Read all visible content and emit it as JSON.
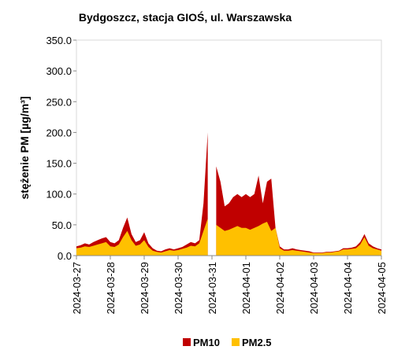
{
  "chart_data": {
    "type": "area",
    "title": "Bydgoszcz, stacja GIOŚ, ul. Warszawska",
    "y_label": "stężenie PM [µg/m³]",
    "categories": [
      "2024-03-27",
      null,
      null,
      null,
      null,
      null,
      null,
      null,
      "2024-03-28",
      null,
      null,
      null,
      null,
      null,
      null,
      null,
      "2024-03-29",
      null,
      null,
      null,
      null,
      null,
      null,
      null,
      "2024-03-30",
      null,
      null,
      null,
      null,
      null,
      null,
      null,
      "2024-03-31",
      null,
      null,
      null,
      null,
      null,
      null,
      null,
      "2024-04-01",
      null,
      null,
      null,
      null,
      null,
      null,
      null,
      "2024-04-02",
      null,
      null,
      null,
      null,
      null,
      null,
      null,
      "2024-04-03",
      null,
      null,
      null,
      null,
      null,
      null,
      null,
      "2024-04-04",
      null,
      null,
      null,
      null,
      null,
      null,
      null,
      "2024-04-05"
    ],
    "series": [
      {
        "name": "PM10",
        "color": "#c00000",
        "values": [
          15,
          17,
          20,
          18,
          22,
          25,
          28,
          30,
          22,
          20,
          25,
          45,
          62,
          35,
          22,
          25,
          38,
          20,
          12,
          8,
          7,
          10,
          12,
          10,
          12,
          14,
          18,
          22,
          20,
          25,
          85,
          200,
          null,
          145,
          120,
          80,
          85,
          95,
          100,
          95,
          100,
          95,
          100,
          130,
          85,
          120,
          125,
          45,
          15,
          10,
          10,
          12,
          10,
          9,
          8,
          7,
          5,
          5,
          5,
          6,
          6,
          7,
          8,
          12,
          12,
          13,
          15,
          22,
          35,
          20,
          15,
          12,
          10
        ]
      },
      {
        "name": "PM2.5",
        "color": "#ffc000",
        "values": [
          12,
          13,
          15,
          14,
          16,
          18,
          20,
          22,
          15,
          14,
          18,
          30,
          40,
          25,
          16,
          18,
          25,
          14,
          8,
          6,
          5,
          7,
          9,
          8,
          9,
          11,
          13,
          16,
          15,
          20,
          40,
          60,
          null,
          50,
          45,
          40,
          42,
          45,
          48,
          45,
          45,
          42,
          45,
          48,
          52,
          55,
          40,
          45,
          12,
          8,
          8,
          9,
          8,
          7,
          6,
          5,
          4,
          4,
          4,
          5,
          5,
          6,
          7,
          10,
          10,
          11,
          12,
          18,
          30,
          16,
          12,
          10,
          8
        ]
      }
    ],
    "ylim": [
      0,
      350
    ],
    "yticks": [
      {
        "value": 0,
        "label": "0.0"
      },
      {
        "value": 50,
        "label": "50.0"
      },
      {
        "value": 100,
        "label": "100.0"
      },
      {
        "value": 150,
        "label": "150.0"
      },
      {
        "value": 200,
        "label": "200.0"
      },
      {
        "value": 250,
        "label": "250.0"
      },
      {
        "value": 300,
        "label": "300.0"
      },
      {
        "value": 350,
        "label": "350.0"
      }
    ],
    "legend": "bottom"
  }
}
